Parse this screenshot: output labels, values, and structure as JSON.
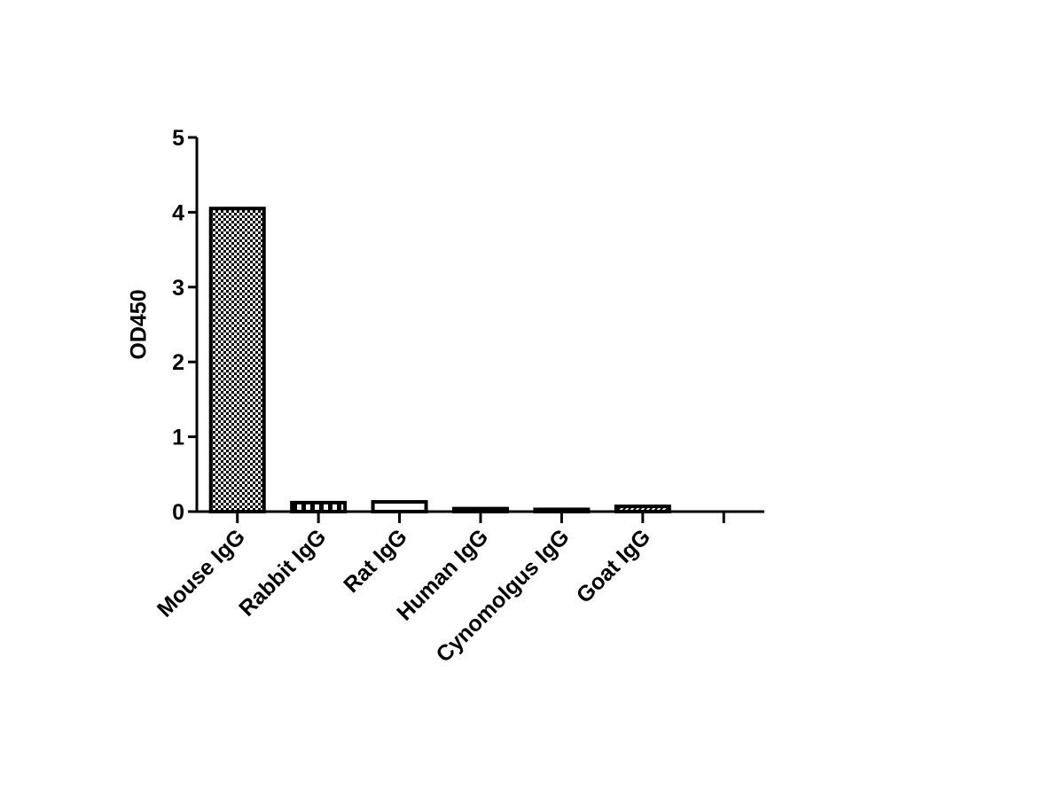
{
  "chart_data": {
    "type": "bar",
    "y_label": "OD450",
    "categories": [
      "Mouse IgG",
      "Rabbit IgG",
      "Rat IgG",
      "Human IgG",
      "Cynomolgus IgG",
      "Goat IgG",
      null
    ],
    "values": [
      4.05,
      0.12,
      0.13,
      0.04,
      0.03,
      0.07,
      null
    ],
    "color": "#000000",
    "ylim": [
      0,
      5
    ],
    "yticks": [
      0,
      1,
      2,
      3,
      4,
      5
    ],
    "grid": false
  }
}
